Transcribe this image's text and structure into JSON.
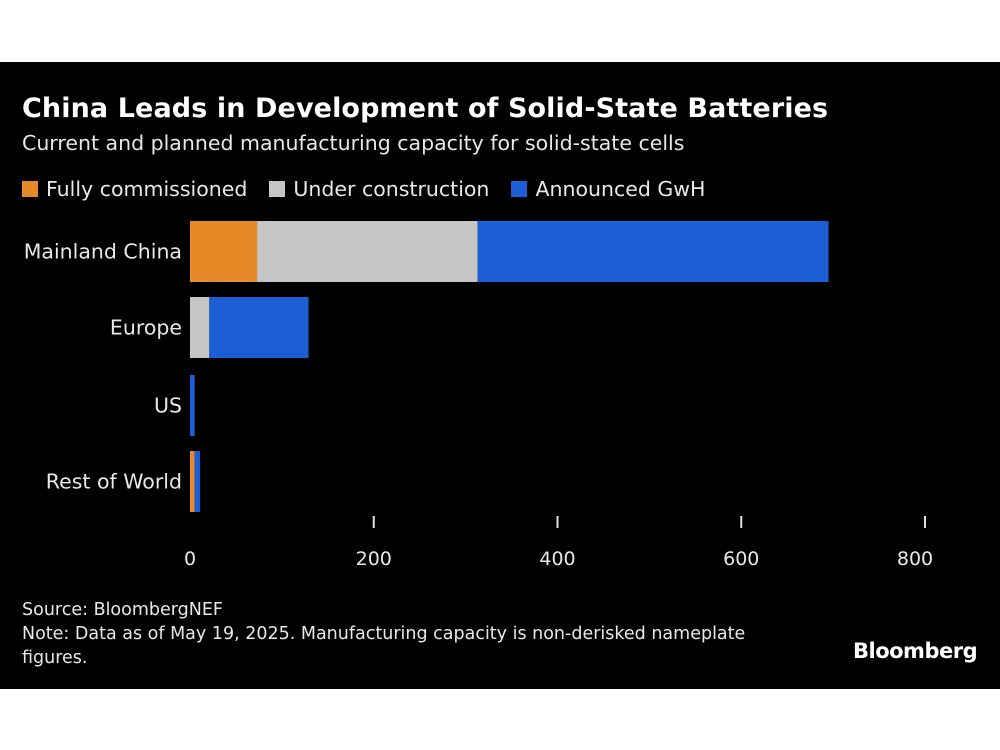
{
  "chart_data": {
    "type": "bar",
    "orientation": "horizontal",
    "stacked": true,
    "title": "China Leads in Development of Solid-State Batteries",
    "subtitle": "Current and planned manufacturing capacity for solid-state cells",
    "categories": [
      "Mainland China",
      "Europe",
      "US",
      "Rest of World"
    ],
    "series": [
      {
        "name": "Fully commissioned",
        "color": "#e68a27",
        "values": [
          73,
          0,
          0,
          5
        ]
      },
      {
        "name": "Under construction",
        "color": "#c6c6c6",
        "values": [
          240,
          21,
          0,
          0
        ]
      },
      {
        "name": "Announced GwH",
        "color": "#1c5ed6",
        "values": [
          382,
          108,
          5,
          6
        ]
      }
    ],
    "xlim": [
      0,
      800
    ],
    "xticks": [
      0,
      200,
      400,
      600,
      800
    ],
    "xtick_labels": [
      "0",
      "200",
      "400",
      "600",
      "800"
    ],
    "xlabel": "",
    "ylabel": "",
    "legend": "top-left"
  },
  "footer": {
    "source": "Source: BloombergNEF",
    "note": "Note: Data as of May 19, 2025. Manufacturing capacity is non-derisked nameplate figures.",
    "brand": "Bloomberg"
  }
}
